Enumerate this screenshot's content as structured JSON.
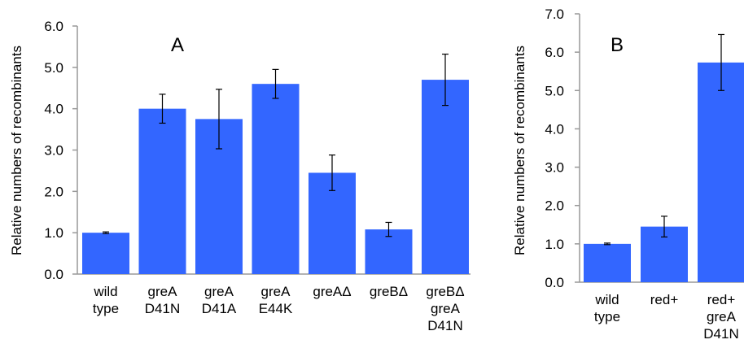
{
  "bar_color": "#3366ff",
  "axis_color": "#999999",
  "chart_data": [
    {
      "type": "bar",
      "panel_label": "A",
      "ylabel": "Relative numbers of recombinants",
      "ylim": [
        0,
        6
      ],
      "yticks": [
        "0.0",
        "1.0",
        "2.0",
        "3.0",
        "4.0",
        "5.0",
        "6.0"
      ],
      "categories": [
        [
          "wild",
          "type"
        ],
        [
          "greA",
          "D41N"
        ],
        [
          "greA",
          "D41A"
        ],
        [
          "greA",
          "E44K"
        ],
        [
          "greAΔ"
        ],
        [
          "greBΔ"
        ],
        [
          "greBΔ",
          "greA",
          "D41N"
        ]
      ],
      "values": [
        1.0,
        4.0,
        3.75,
        4.6,
        2.45,
        1.08,
        4.7
      ],
      "error": [
        0.02,
        0.35,
        0.72,
        0.35,
        0.43,
        0.17,
        0.62
      ]
    },
    {
      "type": "bar",
      "panel_label": "B",
      "ylabel": "Relative numbers of recombinants",
      "ylim": [
        0,
        7
      ],
      "yticks": [
        "0.0",
        "1.0",
        "2.0",
        "3.0",
        "4.0",
        "5.0",
        "6.0",
        "7.0"
      ],
      "categories": [
        [
          "wild",
          "type"
        ],
        [
          "red+"
        ],
        [
          "red+",
          "greA",
          "D41N"
        ]
      ],
      "values": [
        1.0,
        1.45,
        5.73
      ],
      "error": [
        0.02,
        0.27,
        0.73
      ]
    }
  ]
}
